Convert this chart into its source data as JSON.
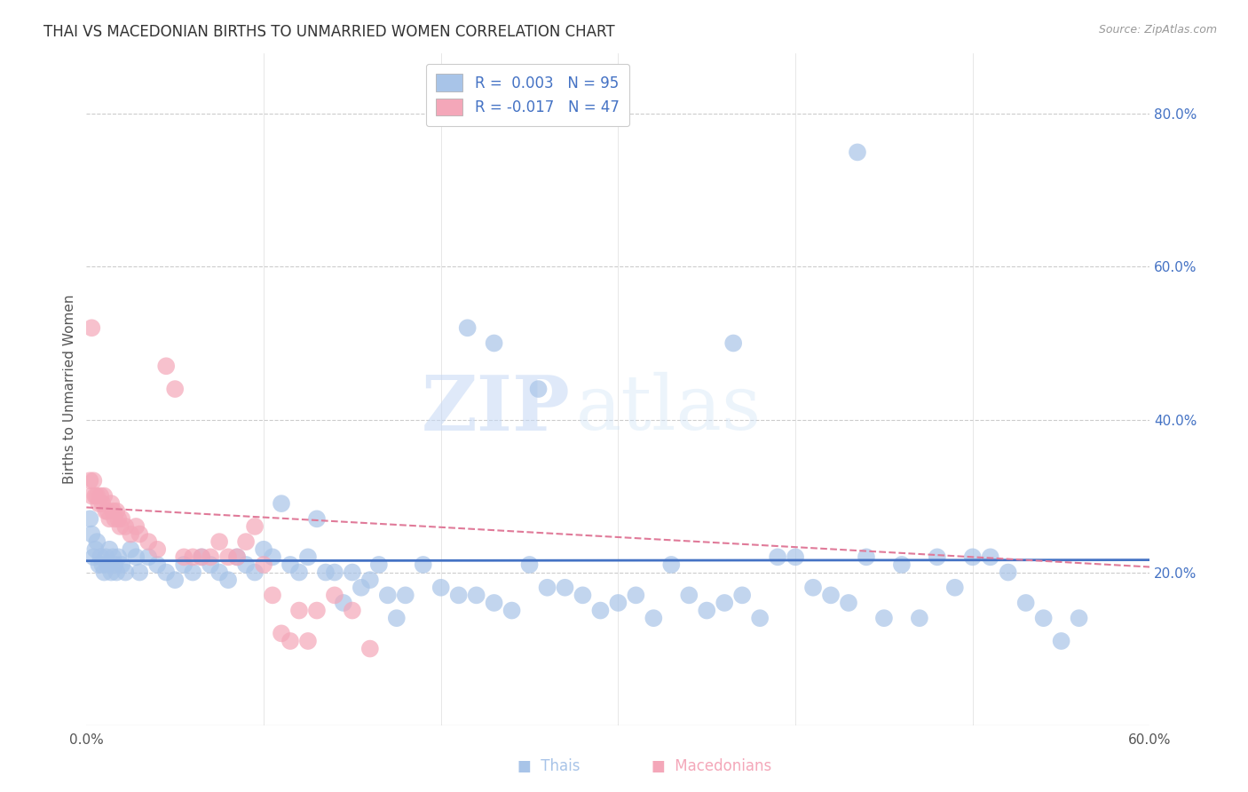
{
  "title": "THAI VS MACEDONIAN BIRTHS TO UNMARRIED WOMEN CORRELATION CHART",
  "source": "Source: ZipAtlas.com",
  "ylabel": "Births to Unmarried Women",
  "xlim": [
    0.0,
    0.6
  ],
  "ylim": [
    0.0,
    0.88
  ],
  "yticks": [
    0.2,
    0.4,
    0.6,
    0.8
  ],
  "ytick_labels": [
    "20.0%",
    "40.0%",
    "60.0%",
    "80.0%"
  ],
  "thai_color": "#a8c4e8",
  "mac_color": "#f4a7b9",
  "thai_R": 0.003,
  "thai_N": 95,
  "mac_R": -0.017,
  "mac_N": 47,
  "thai_line_color": "#4472c4",
  "mac_line_color": "#e07a99",
  "watermark_zip": "ZIP",
  "watermark_atlas": "atlas",
  "background_color": "#ffffff",
  "grid_color": "#cccccc",
  "thai_line_y_intercept": 0.215,
  "thai_line_slope": 0.002,
  "mac_line_y_intercept": 0.285,
  "mac_line_slope": -0.13,
  "thai_x": [
    0.002,
    0.003,
    0.004,
    0.005,
    0.006,
    0.007,
    0.008,
    0.009,
    0.01,
    0.011,
    0.012,
    0.013,
    0.014,
    0.015,
    0.016,
    0.017,
    0.018,
    0.02,
    0.022,
    0.025,
    0.028,
    0.03,
    0.035,
    0.04,
    0.045,
    0.05,
    0.055,
    0.06,
    0.065,
    0.07,
    0.075,
    0.08,
    0.085,
    0.09,
    0.095,
    0.1,
    0.105,
    0.11,
    0.115,
    0.12,
    0.125,
    0.13,
    0.135,
    0.14,
    0.145,
    0.15,
    0.155,
    0.16,
    0.165,
    0.17,
    0.175,
    0.18,
    0.19,
    0.2,
    0.21,
    0.22,
    0.23,
    0.24,
    0.25,
    0.26,
    0.27,
    0.28,
    0.29,
    0.3,
    0.31,
    0.32,
    0.33,
    0.34,
    0.35,
    0.36,
    0.37,
    0.38,
    0.39,
    0.4,
    0.41,
    0.42,
    0.43,
    0.44,
    0.45,
    0.46,
    0.47,
    0.48,
    0.49,
    0.5,
    0.51,
    0.52,
    0.53,
    0.54,
    0.55,
    0.56,
    0.435,
    0.365,
    0.255,
    0.23,
    0.215
  ],
  "thai_y": [
    0.27,
    0.25,
    0.22,
    0.23,
    0.24,
    0.21,
    0.22,
    0.21,
    0.2,
    0.22,
    0.21,
    0.23,
    0.2,
    0.22,
    0.21,
    0.2,
    0.22,
    0.21,
    0.2,
    0.23,
    0.22,
    0.2,
    0.22,
    0.21,
    0.2,
    0.19,
    0.21,
    0.2,
    0.22,
    0.21,
    0.2,
    0.19,
    0.22,
    0.21,
    0.2,
    0.23,
    0.22,
    0.29,
    0.21,
    0.2,
    0.22,
    0.27,
    0.2,
    0.2,
    0.16,
    0.2,
    0.18,
    0.19,
    0.21,
    0.17,
    0.14,
    0.17,
    0.21,
    0.18,
    0.17,
    0.17,
    0.16,
    0.15,
    0.21,
    0.18,
    0.18,
    0.17,
    0.15,
    0.16,
    0.17,
    0.14,
    0.21,
    0.17,
    0.15,
    0.16,
    0.17,
    0.14,
    0.22,
    0.22,
    0.18,
    0.17,
    0.16,
    0.22,
    0.14,
    0.21,
    0.14,
    0.22,
    0.18,
    0.22,
    0.22,
    0.2,
    0.16,
    0.14,
    0.11,
    0.14,
    0.75,
    0.5,
    0.44,
    0.5,
    0.52
  ],
  "mac_x": [
    0.002,
    0.003,
    0.004,
    0.005,
    0.006,
    0.007,
    0.008,
    0.009,
    0.01,
    0.011,
    0.012,
    0.013,
    0.014,
    0.015,
    0.016,
    0.017,
    0.018,
    0.019,
    0.02,
    0.022,
    0.025,
    0.028,
    0.03,
    0.035,
    0.04,
    0.045,
    0.05,
    0.055,
    0.06,
    0.065,
    0.07,
    0.075,
    0.08,
    0.085,
    0.09,
    0.095,
    0.1,
    0.105,
    0.11,
    0.115,
    0.12,
    0.125,
    0.13,
    0.14,
    0.15,
    0.16,
    0.003
  ],
  "mac_y": [
    0.32,
    0.3,
    0.32,
    0.3,
    0.3,
    0.29,
    0.3,
    0.29,
    0.3,
    0.28,
    0.28,
    0.27,
    0.29,
    0.28,
    0.27,
    0.28,
    0.27,
    0.26,
    0.27,
    0.26,
    0.25,
    0.26,
    0.25,
    0.24,
    0.23,
    0.47,
    0.44,
    0.22,
    0.22,
    0.22,
    0.22,
    0.24,
    0.22,
    0.22,
    0.24,
    0.26,
    0.21,
    0.17,
    0.12,
    0.11,
    0.15,
    0.11,
    0.15,
    0.17,
    0.15,
    0.1,
    0.52
  ]
}
